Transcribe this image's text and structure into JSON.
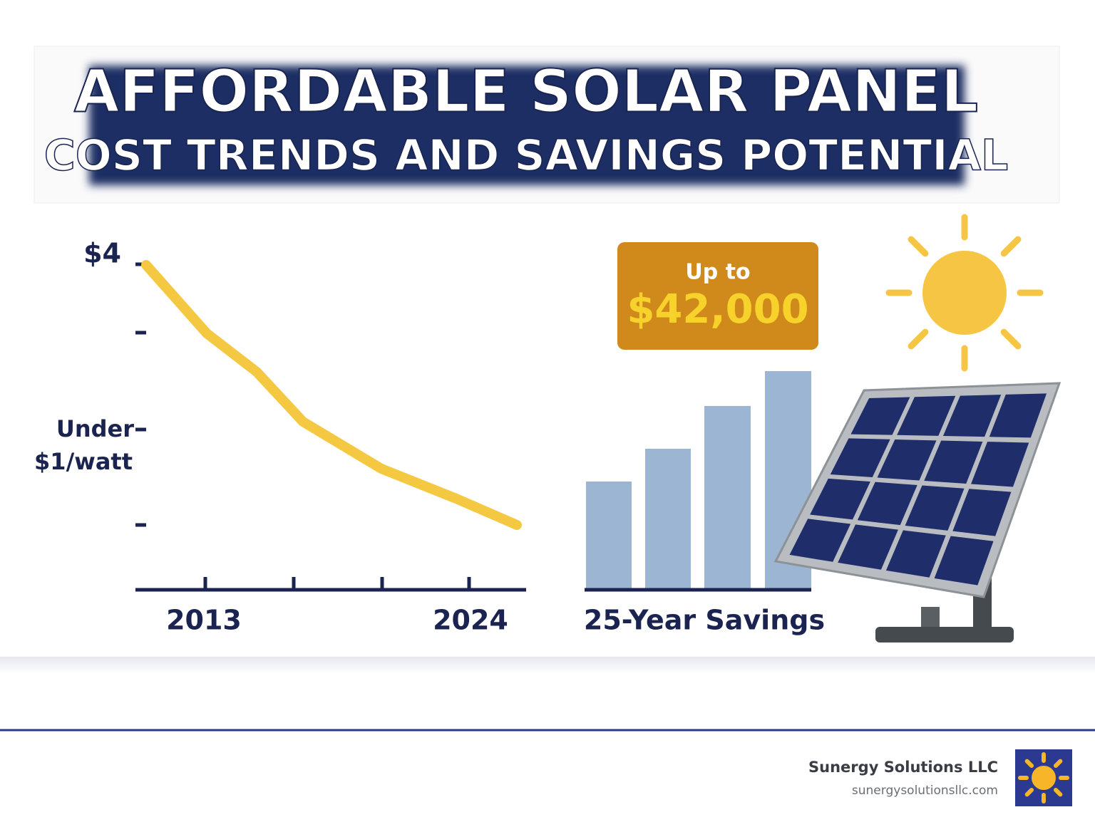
{
  "header": {
    "title_line1": "AFFORDABLE SOLAR PANEL",
    "title_line2": "COST TRENDS AND SAVINGS POTENTIAL"
  },
  "cost_chart": {
    "y_top_label": "$4",
    "y_mid_label_line1": "Under",
    "y_mid_label_line2": "$1/watt",
    "x_start_label": "2013",
    "x_end_label": "2024"
  },
  "savings": {
    "badge_line1": "Up to",
    "badge_amount": "$42,000",
    "label": "25-Year Savings"
  },
  "footer": {
    "company": "Sunergy Solutions LLC",
    "website": "sunergysolutionsllc.com"
  }
}
